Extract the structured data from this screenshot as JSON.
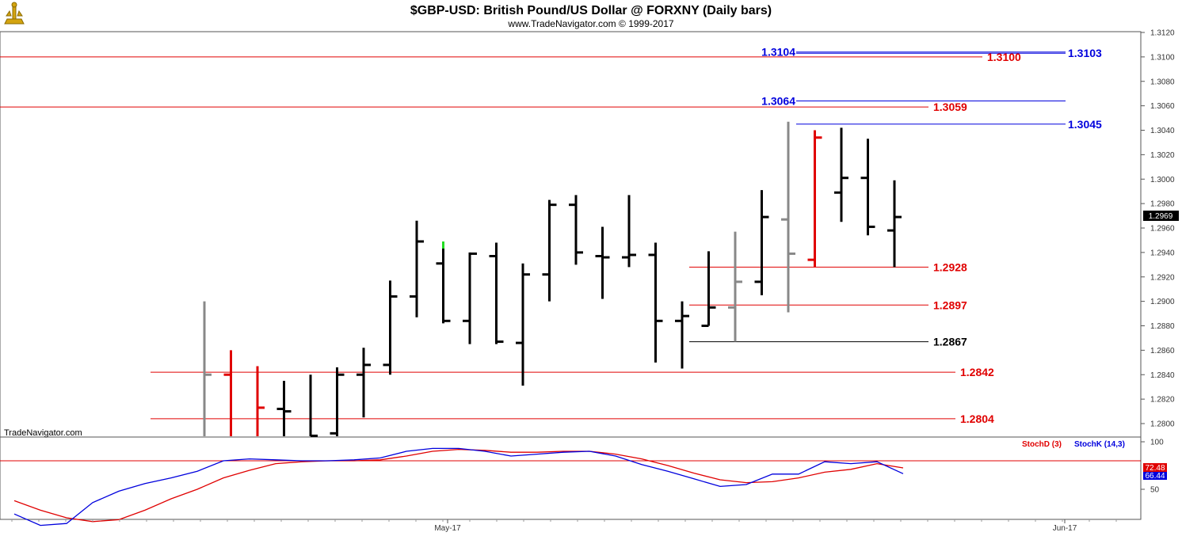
{
  "header": {
    "title": "$GBP-USD:  British Pound/US Dollar @ FORXNY  (Daily bars)",
    "copyright": "www.TradeNavigator.com © 1999-2017"
  },
  "watermark": "TradeNavigator.com",
  "colors": {
    "red": "#e00000",
    "blue": "#0000dd",
    "black": "#000000",
    "gray": "#888888",
    "green": "#22dd22",
    "grid": "#bbbbbb"
  },
  "chart_data": [
    {
      "type": "ohlc",
      "title": "$GBP-USD:  British Pound/US Dollar @ FORXNY  (Daily bars)",
      "ylim": [
        1.279,
        1.3125
      ],
      "yticks": [
        "1.2800",
        "1.2820",
        "1.2840",
        "1.2860",
        "1.2880",
        "1.2900",
        "1.2920",
        "1.2940",
        "1.2960",
        "1.2980",
        "1.3000",
        "1.3020",
        "1.3040",
        "1.3060",
        "1.3080",
        "1.3100",
        "1.3120"
      ],
      "x_labels": [
        "May-17",
        "Jun-17"
      ],
      "last_price": "1.2969",
      "bars": [
        {
          "o": null,
          "h": 1.29,
          "l": 1.278,
          "c": 1.284,
          "color": "gray"
        },
        {
          "o": 1.284,
          "h": 1.286,
          "l": 1.278,
          "c": null,
          "color": "red"
        },
        {
          "o": null,
          "h": 1.2847,
          "l": 1.278,
          "c": 1.2813,
          "color": "red"
        },
        {
          "o": 1.2812,
          "h": 1.2835,
          "l": 1.2785,
          "c": 1.281,
          "color": "black"
        },
        {
          "o": null,
          "h": 1.284,
          "l": 1.2785,
          "c": 1.279,
          "color": "black"
        },
        {
          "o": 1.2792,
          "h": 1.2846,
          "l": 1.2785,
          "c": 1.284,
          "color": "black"
        },
        {
          "o": 1.284,
          "h": 1.2862,
          "l": 1.2805,
          "c": 1.2848,
          "color": "black"
        },
        {
          "o": 1.2848,
          "h": 1.2917,
          "l": 1.284,
          "c": 1.2904,
          "color": "black"
        },
        {
          "o": 1.2904,
          "h": 1.2966,
          "l": 1.2887,
          "c": 1.2949,
          "color": "black"
        },
        {
          "o": 1.2931,
          "h": 1.2949,
          "l": 1.2882,
          "c": 1.2884,
          "color": "black",
          "top_color": "green"
        },
        {
          "o": 1.2884,
          "h": 1.294,
          "l": 1.2865,
          "c": 1.2939,
          "color": "black"
        },
        {
          "o": 1.2937,
          "h": 1.2948,
          "l": 1.2865,
          "c": 1.2867,
          "color": "black"
        },
        {
          "o": 1.2866,
          "h": 1.2931,
          "l": 1.2831,
          "c": 1.2922,
          "color": "black"
        },
        {
          "o": 1.2922,
          "h": 1.2983,
          "l": 1.29,
          "c": 1.2979,
          "color": "black"
        },
        {
          "o": 1.2979,
          "h": 1.2987,
          "l": 1.293,
          "c": 1.294,
          "color": "black"
        },
        {
          "o": 1.2937,
          "h": 1.2961,
          "l": 1.2902,
          "c": 1.2936,
          "color": "black"
        },
        {
          "o": 1.2936,
          "h": 1.2987,
          "l": 1.2928,
          "c": 1.2938,
          "color": "black"
        },
        {
          "o": 1.2938,
          "h": 1.2948,
          "l": 1.285,
          "c": 1.2884,
          "color": "black"
        },
        {
          "o": 1.2884,
          "h": 1.29,
          "l": 1.2845,
          "c": 1.2888,
          "color": "black"
        },
        {
          "o": 1.288,
          "h": 1.2941,
          "l": 1.288,
          "c": 1.2895,
          "color": "black"
        },
        {
          "o": 1.2895,
          "h": 1.2957,
          "l": 1.2867,
          "c": 1.2916,
          "color": "gray"
        },
        {
          "o": 1.2916,
          "h": 1.2991,
          "l": 1.2905,
          "c": 1.2969,
          "color": "black"
        },
        {
          "o": 1.2967,
          "h": 1.3047,
          "l": 1.2891,
          "c": 1.2939,
          "color": "gray"
        },
        {
          "o": 1.2934,
          "h": 1.304,
          "l": 1.2928,
          "c": 1.3034,
          "color": "red"
        },
        {
          "o": 1.2989,
          "h": 1.3042,
          "l": 1.2965,
          "c": 1.3001,
          "color": "black"
        },
        {
          "o": 1.3001,
          "h": 1.3033,
          "l": 1.2954,
          "c": 1.2961,
          "color": "black"
        },
        {
          "o": 1.2958,
          "h": 1.2999,
          "l": 1.2928,
          "c": 1.2969,
          "color": "black"
        }
      ],
      "levels": [
        {
          "value": 1.3104,
          "label": "1.3104",
          "color": "blue"
        },
        {
          "value": 1.3103,
          "label": "1.3103",
          "color": "blue"
        },
        {
          "value": 1.31,
          "label": "1.3100",
          "color": "red"
        },
        {
          "value": 1.3064,
          "label": "1.3064",
          "color": "blue"
        },
        {
          "value": 1.3059,
          "label": "1.3059",
          "color": "red"
        },
        {
          "value": 1.3045,
          "label": "1.3045",
          "color": "blue"
        },
        {
          "value": 1.2928,
          "label": "1.2928",
          "color": "red"
        },
        {
          "value": 1.2897,
          "label": "1.2897",
          "color": "red"
        },
        {
          "value": 1.2867,
          "label": "1.2867",
          "color": "black"
        },
        {
          "value": 1.2842,
          "label": "1.2842",
          "color": "red"
        },
        {
          "value": 1.2804,
          "label": "1.2804",
          "color": "red"
        }
      ]
    },
    {
      "type": "line",
      "ylim": [
        0,
        100
      ],
      "yticks": [
        "100",
        "50"
      ],
      "legend": [
        {
          "name": "StochD (3)",
          "color": "red"
        },
        {
          "name": "StochK (14,3)",
          "color": "blue"
        }
      ],
      "reference_level": 80,
      "last_values": {
        "StochD (3)": "72.48",
        "StochK (14,3)": "66.44"
      },
      "series": [
        {
          "name": "StochD (3)",
          "color": "red",
          "values": [
            38,
            28,
            20,
            16,
            18,
            28,
            40,
            50,
            62,
            70,
            77,
            79,
            80,
            80,
            81,
            85,
            90,
            92,
            91,
            89,
            89,
            90,
            90,
            87,
            82,
            75,
            67,
            60,
            57,
            58,
            62,
            68,
            71,
            77,
            72.48
          ]
        },
        {
          "name": "StochK (14,3)",
          "color": "blue",
          "values": [
            24,
            12,
            14,
            36,
            48,
            56,
            62,
            69,
            80,
            82,
            81,
            80,
            80,
            81,
            83,
            90,
            93,
            93,
            90,
            85,
            87,
            89,
            90,
            85,
            76,
            69,
            61,
            53,
            55,
            66,
            66,
            79,
            77,
            79,
            66.44
          ]
        }
      ]
    }
  ]
}
